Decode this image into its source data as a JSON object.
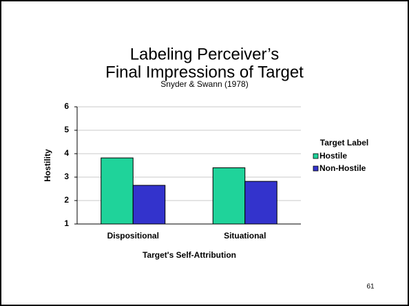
{
  "chart_data": {
    "type": "bar",
    "title": [
      "Labeling Perceiver’s",
      "Final Impressions of Target"
    ],
    "subtitle": "Snyder & Swann (1978)",
    "x_label": "Target's Self-Attribution",
    "y_label": "Hostility",
    "legend_title": "Target Label",
    "legend_position": "right",
    "categories": [
      "Dispositional",
      "Situational"
    ],
    "series": [
      {
        "name": "Hostile",
        "color": "#1fd39a",
        "values": [
          3.82,
          3.4
        ]
      },
      {
        "name": "Non-Hostile",
        "color": "#3333cc",
        "values": [
          2.65,
          2.82
        ]
      }
    ],
    "ylim": [
      1,
      6
    ],
    "yticks": [
      1,
      2,
      3,
      4,
      5,
      6
    ],
    "grid": true
  },
  "page_number": "61"
}
